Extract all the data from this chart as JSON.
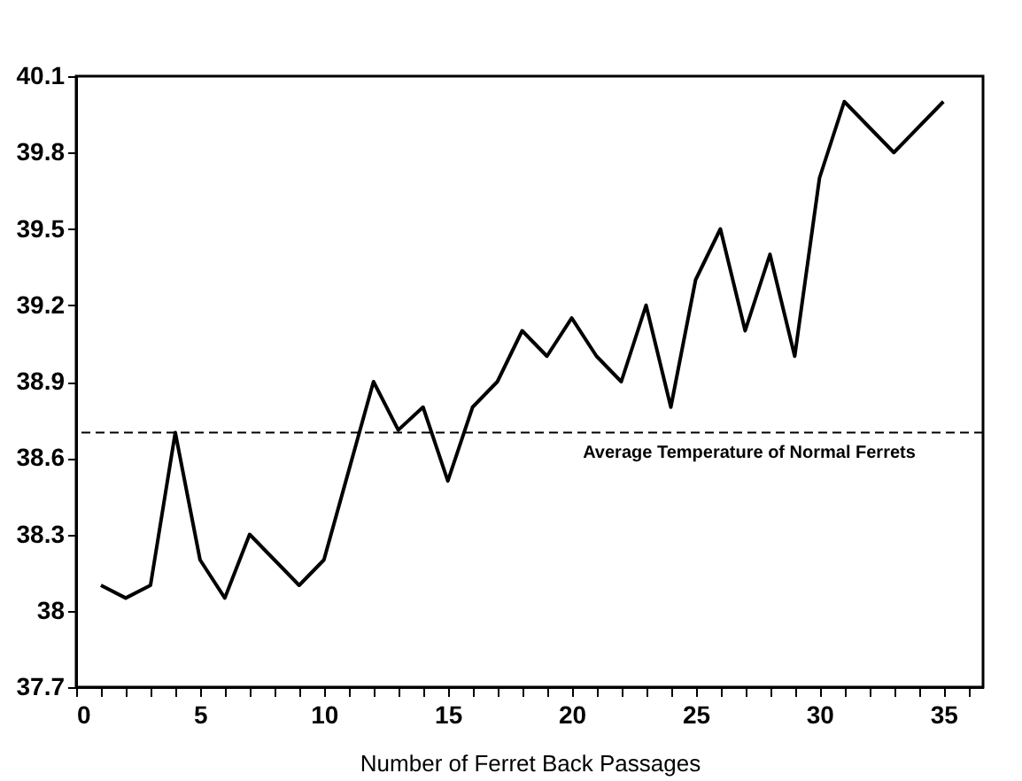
{
  "chart_data": {
    "type": "line",
    "xlabel": "Number of Ferret Back Passages",
    "x": [
      1,
      2,
      3,
      4,
      5,
      6,
      7,
      8,
      9,
      10,
      11,
      12,
      13,
      14,
      15,
      16,
      17,
      18,
      19,
      20,
      21,
      22,
      23,
      24,
      25,
      26,
      27,
      28,
      29,
      30,
      31,
      33,
      35
    ],
    "series": [
      {
        "color": "#000000",
        "values": [
          38.1,
          38.05,
          38.1,
          38.7,
          38.2,
          38.05,
          38.3,
          38.2,
          38.1,
          38.2,
          38.55,
          38.9,
          38.71,
          38.8,
          38.51,
          38.8,
          38.9,
          39.1,
          39.0,
          39.15,
          39.0,
          38.9,
          39.2,
          38.8,
          39.3,
          39.5,
          39.1,
          39.4,
          39.0,
          39.7,
          40.0,
          39.8,
          40.0
        ]
      }
    ],
    "xlim": [
      0,
      36.6
    ],
    "xticks": [
      0,
      {
        "value": 1,
        "label": null
      },
      {
        "value": 2,
        "label": null
      },
      {
        "value": 3,
        "label": null
      },
      {
        "value": 4,
        "label": null
      },
      5,
      {
        "value": 6,
        "label": null
      },
      {
        "value": 7,
        "label": null
      },
      {
        "value": 8,
        "label": null
      },
      {
        "value": 9,
        "label": null
      },
      10,
      {
        "value": 11,
        "label": null
      },
      {
        "value": 12,
        "label": null
      },
      {
        "value": 13,
        "label": null
      },
      {
        "value": 14,
        "label": null
      },
      15,
      {
        "value": 16,
        "label": null
      },
      {
        "value": 17,
        "label": null
      },
      {
        "value": 18,
        "label": null
      },
      {
        "value": 19,
        "label": null
      },
      20,
      {
        "value": 21,
        "label": null
      },
      {
        "value": 22,
        "label": null
      },
      {
        "value": 23,
        "label": null
      },
      {
        "value": 24,
        "label": null
      },
      25,
      {
        "value": 26,
        "label": null
      },
      {
        "value": 27,
        "label": null
      },
      {
        "value": 28,
        "label": null
      },
      {
        "value": 29,
        "label": null
      },
      30,
      {
        "value": 31,
        "label": null
      },
      {
        "value": 32,
        "label": null
      },
      {
        "value": 33,
        "label": null
      },
      {
        "value": 34,
        "label": null
      },
      35,
      {
        "value": 36,
        "label": null
      }
    ],
    "ylim": [
      37.7,
      40.1
    ],
    "yticks": [
      37.7,
      38,
      38.3,
      38.6,
      38.9,
      39.2,
      39.5,
      39.8,
      40.1
    ],
    "ref_lines": [
      {
        "axis": "y",
        "value": 38.7,
        "label": "Average Temperature of Normal Ferrets",
        "color": "#000000",
        "line_style": "dashed"
      }
    ],
    "grid": false,
    "marker": "none",
    "line_style": "solid"
  }
}
